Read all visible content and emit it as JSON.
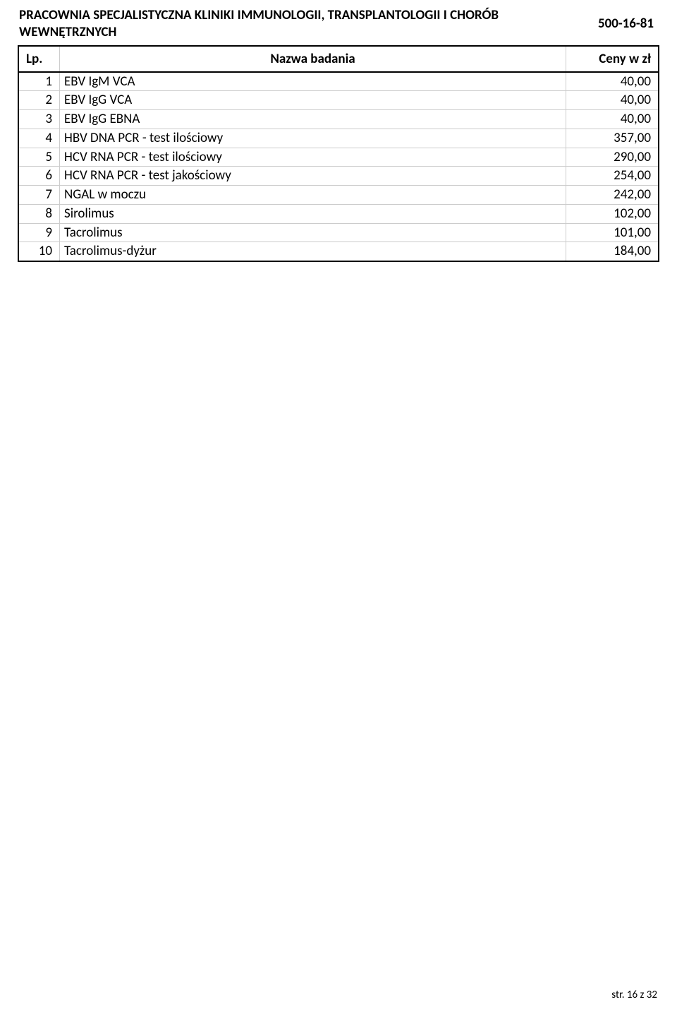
{
  "header": {
    "title": "PRACOWNIA SPECJALISTYCZNA KLINIKI IMMUNOLOGII, TRANSPLANTOLOGII I CHORÓB WEWNĘTRZNYCH",
    "phone": "500-16-81"
  },
  "columns": {
    "lp": "Lp.",
    "name": "Nazwa badania",
    "price": "Ceny w zł"
  },
  "rows": [
    {
      "lp": "1",
      "name": "EBV IgM VCA",
      "price": "40,00"
    },
    {
      "lp": "2",
      "name": "EBV IgG VCA",
      "price": "40,00"
    },
    {
      "lp": "3",
      "name": "EBV IgG EBNA",
      "price": "40,00"
    },
    {
      "lp": "4",
      "name": "HBV DNA PCR - test ilościowy",
      "price": "357,00"
    },
    {
      "lp": "5",
      "name": "HCV RNA PCR - test ilościowy",
      "price": "290,00"
    },
    {
      "lp": "6",
      "name": "HCV RNA PCR - test jakościowy",
      "price": "254,00"
    },
    {
      "lp": "7",
      "name": "NGAL w moczu",
      "price": "242,00"
    },
    {
      "lp": "8",
      "name": "Sirolimus",
      "price": "102,00"
    },
    {
      "lp": "9",
      "name": "Tacrolimus",
      "price": "101,00"
    },
    {
      "lp": "10",
      "name": "Tacrolimus-dyżur",
      "price": "184,00"
    }
  ],
  "footer": "str. 16 z 32"
}
